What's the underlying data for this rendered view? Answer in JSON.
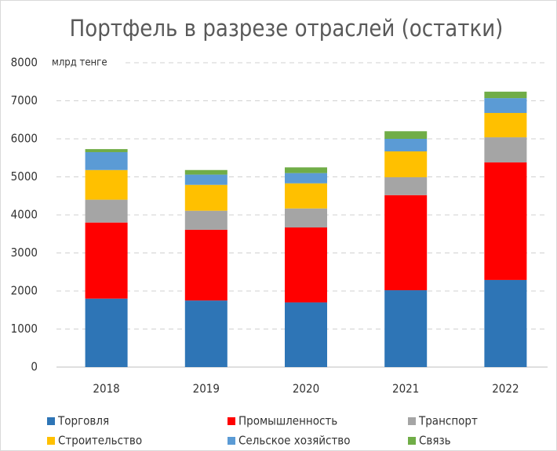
{
  "chart_data": {
    "type": "stacked_bar",
    "title": "Портфель в разрезе отраслей (остатки)",
    "annotation": "млрд тенге",
    "categories": [
      "2018",
      "2019",
      "2020",
      "2021",
      "2022"
    ],
    "series": [
      {
        "name": "Торговля",
        "color": "#2e75b6",
        "values": [
          1800,
          1750,
          1700,
          2020,
          2290
        ]
      },
      {
        "name": "Промышленность",
        "color": "#ff0000",
        "values": [
          2000,
          1860,
          1970,
          2500,
          3090
        ]
      },
      {
        "name": "Транспорт",
        "color": "#a5a5a5",
        "values": [
          600,
          500,
          500,
          470,
          660
        ]
      },
      {
        "name": "Строительство",
        "color": "#ffc000",
        "values": [
          780,
          680,
          660,
          680,
          640
        ]
      },
      {
        "name": "Сельское хозяйство",
        "color": "#5b9bd5",
        "values": [
          470,
          270,
          270,
          330,
          390
        ]
      },
      {
        "name": "Связь",
        "color": "#70ad47",
        "values": [
          80,
          120,
          150,
          200,
          170
        ]
      }
    ],
    "ylim": [
      0,
      8000
    ],
    "yticks": [
      0,
      1000,
      2000,
      3000,
      4000,
      5000,
      6000,
      7000,
      8000
    ],
    "grid": true
  }
}
